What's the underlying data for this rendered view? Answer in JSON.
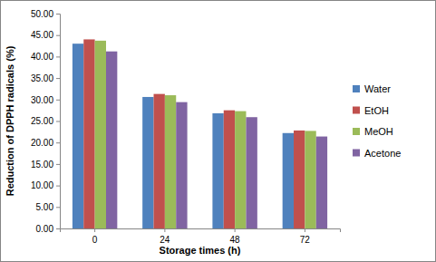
{
  "chart_data": {
    "type": "bar",
    "x_label": "Storage times (h)",
    "y_label": "Reduction of DPPH radicals (%)",
    "categories": [
      "0",
      "24",
      "48",
      "72"
    ],
    "series": [
      {
        "name": "Water",
        "color": "#4f81bd",
        "values": [
          43.0,
          30.6,
          26.8,
          22.2
        ]
      },
      {
        "name": "EtOH",
        "color": "#c0504d",
        "values": [
          44.0,
          31.3,
          27.5,
          22.8
        ]
      },
      {
        "name": "MeOH",
        "color": "#9bbb59",
        "values": [
          43.7,
          31.0,
          27.3,
          22.7
        ]
      },
      {
        "name": "Acetone",
        "color": "#8064a2",
        "values": [
          41.2,
          29.4,
          25.9,
          21.4
        ]
      }
    ],
    "ylim": [
      0,
      50
    ],
    "yticks": [
      {
        "value": 0,
        "label": "0.00"
      },
      {
        "value": 5,
        "label": "5.00"
      },
      {
        "value": 10,
        "label": "10.00"
      },
      {
        "value": 15,
        "label": "15.00"
      },
      {
        "value": 20,
        "label": "20.00"
      },
      {
        "value": 25,
        "label": "25.00"
      },
      {
        "value": 30,
        "label": "30.00"
      },
      {
        "value": 35,
        "label": "35.00"
      },
      {
        "value": 40,
        "label": "40.00"
      },
      {
        "value": 45,
        "label": "45.00"
      },
      {
        "value": 50,
        "label": "50.00"
      }
    ],
    "grid": false,
    "legend": "right"
  }
}
